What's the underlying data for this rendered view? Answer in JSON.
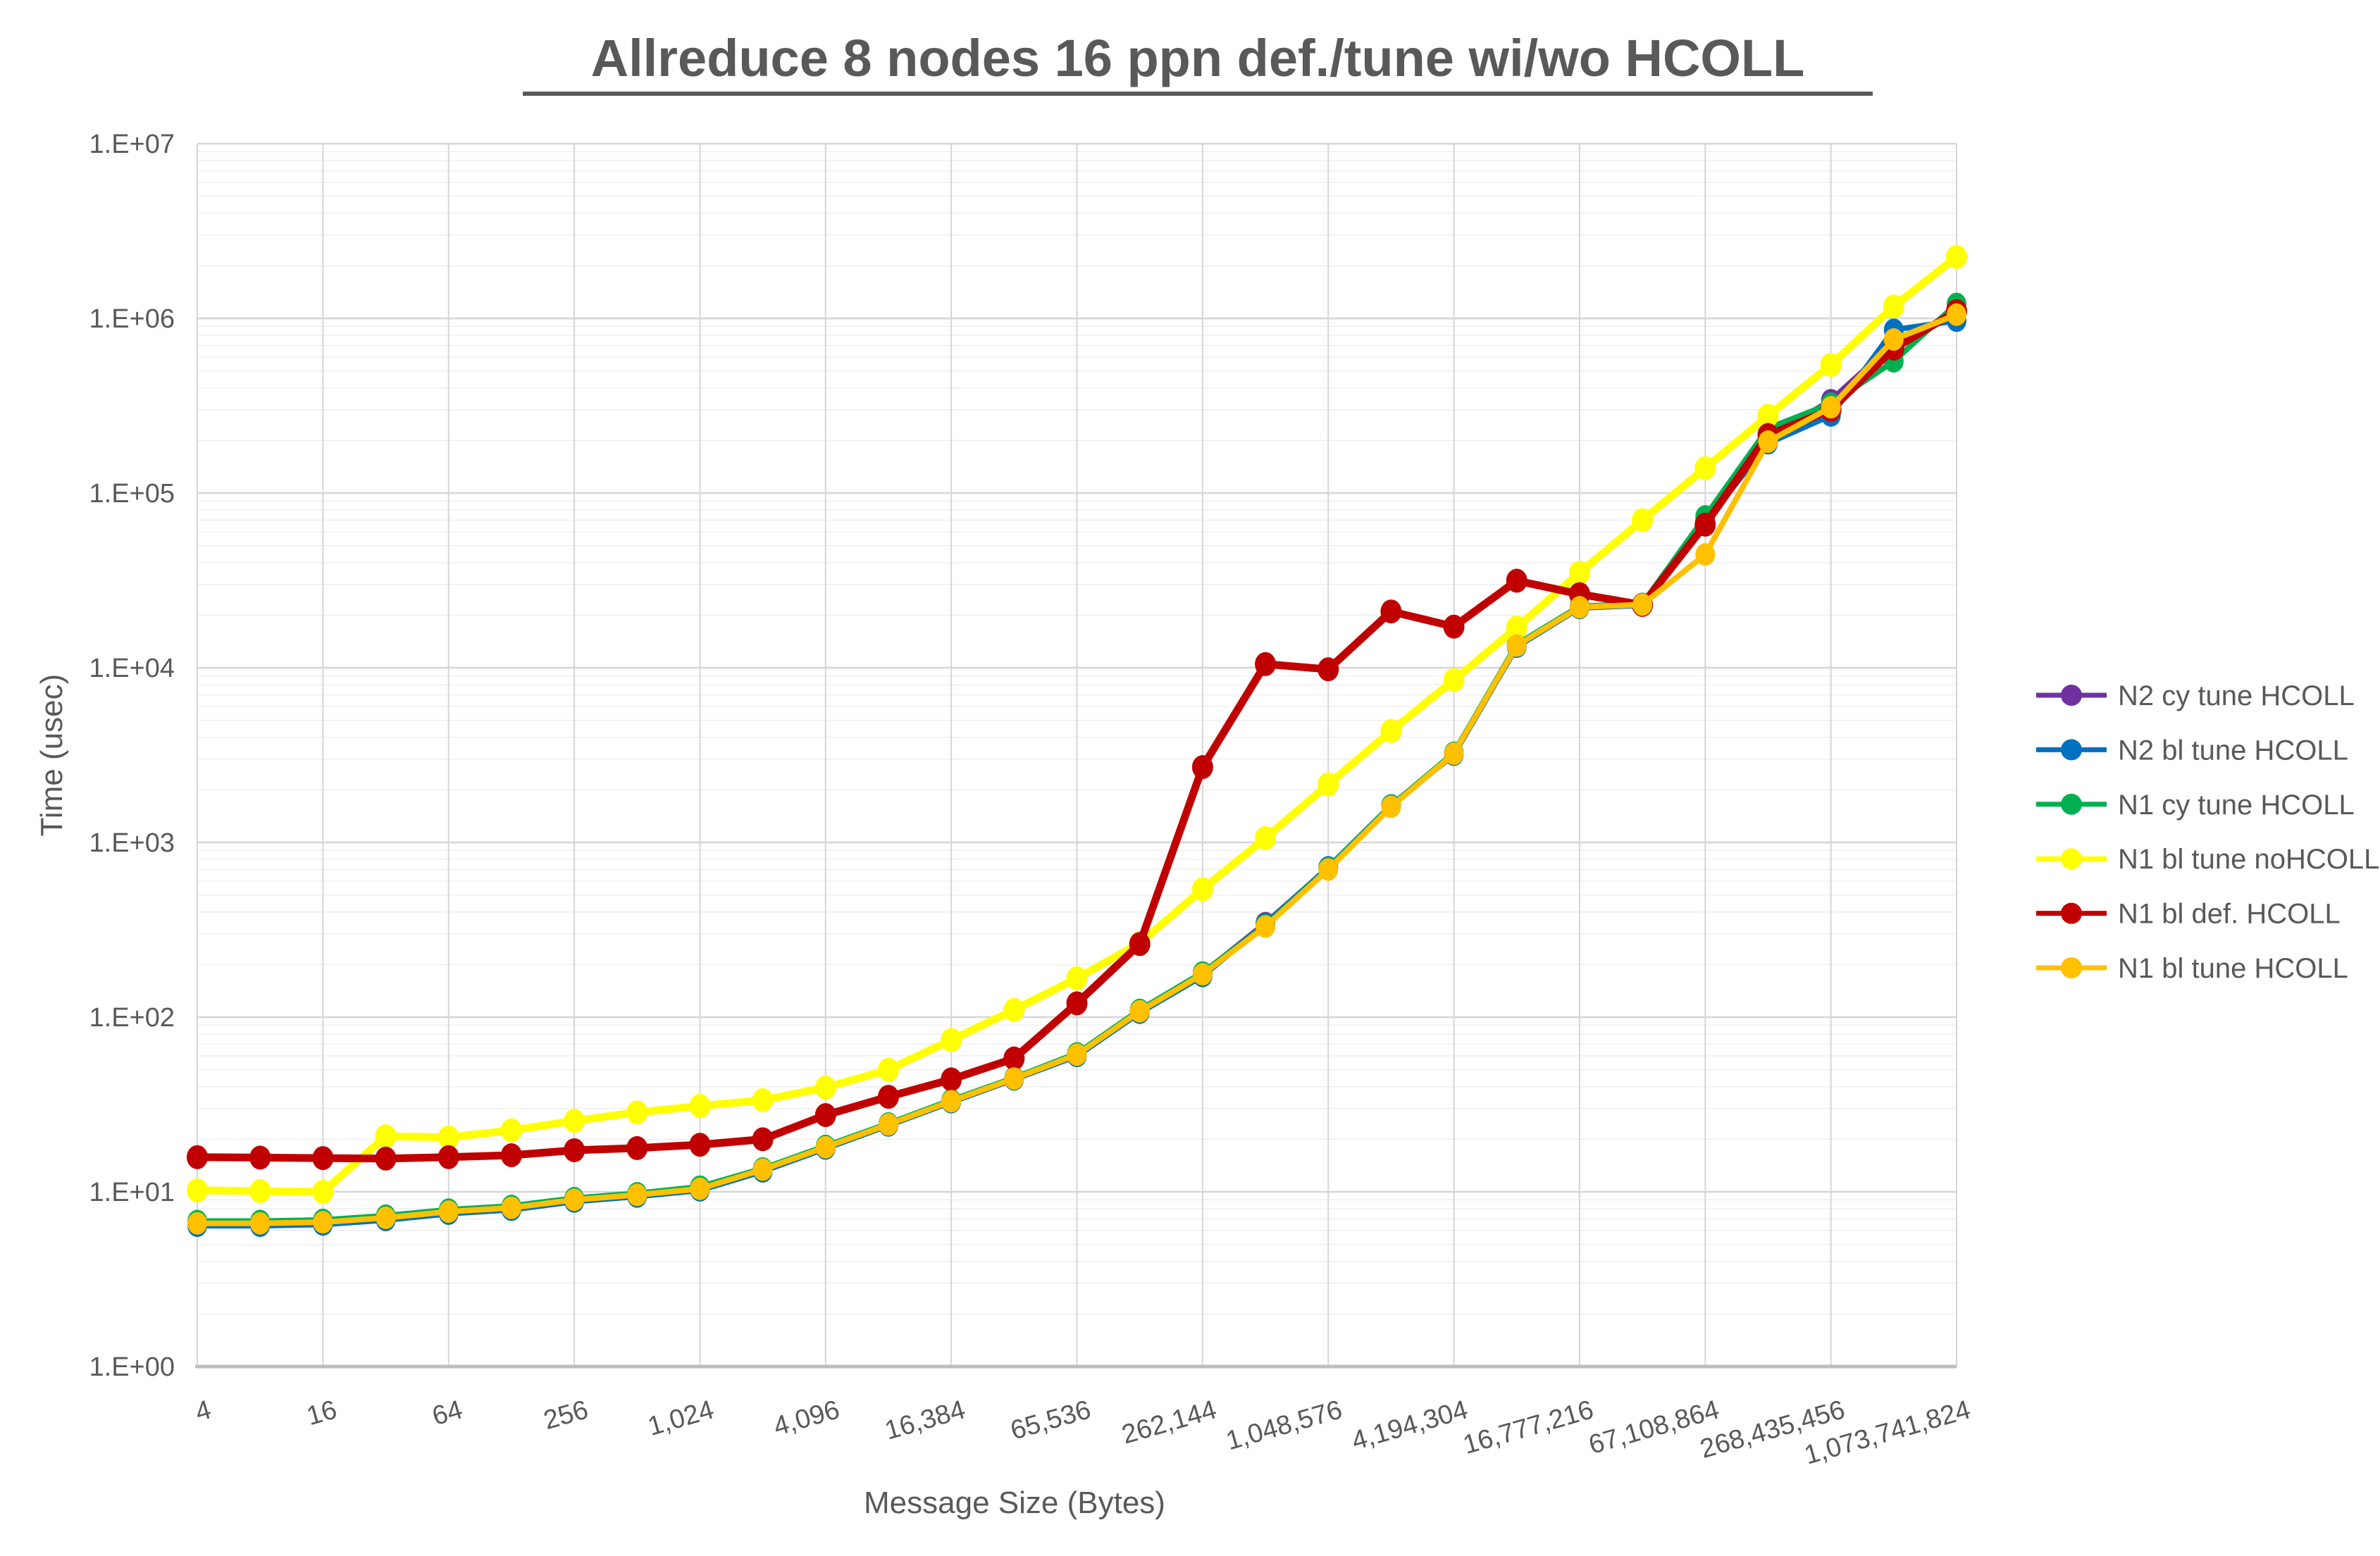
{
  "title": "Allreduce 8 nodes 16 ppn def./tune wi/wo HCOLL",
  "chart_data": {
    "type": "line",
    "x_scale": "log2",
    "y_scale": "log10",
    "title": "Allreduce 8 nodes 16 ppn def./tune wi/wo HCOLL",
    "xlabel": "Message Size (Bytes)",
    "ylabel": "Time (usec)",
    "ylim": [
      1,
      10000000
    ],
    "y_tick_labels": [
      "1.E+00",
      "1.E+01",
      "1.E+02",
      "1.E+03",
      "1.E+04",
      "1.E+05",
      "1.E+06",
      "1.E+07"
    ],
    "x": [
      4,
      8,
      16,
      32,
      64,
      128,
      256,
      512,
      1024,
      2048,
      4096,
      8192,
      16384,
      32768,
      65536,
      131072,
      262144,
      524288,
      1048576,
      2097152,
      4194304,
      8388608,
      16777216,
      33554432,
      67108864,
      134217728,
      268435456,
      536870912,
      1073741824
    ],
    "x_tick_values": [
      4,
      16,
      64,
      256,
      1024,
      4096,
      16384,
      65536,
      262144,
      1048576,
      4194304,
      16777216,
      67108864,
      268435456,
      1073741824
    ],
    "x_tick_labels": [
      "4",
      "16",
      "64",
      "256",
      "1,024",
      "4,096",
      "16,384",
      "65,536",
      "262,144",
      "1,048,576",
      "4,194,304",
      "16,777,216",
      "67,108,864",
      "268,435,456",
      "1,073,741,824"
    ],
    "grid": true,
    "legend_position": "right",
    "series": [
      {
        "name": "N2 cy tune HCOLL",
        "color": "#7030A0",
        "values": [
          6.7,
          6.7,
          6.8,
          7.2,
          7.8,
          8.2,
          9.1,
          9.7,
          10.5,
          13.5,
          18.1,
          24.4,
          33.2,
          44.7,
          61.5,
          109,
          178,
          345,
          715,
          1625,
          3240,
          13500,
          22300,
          23100,
          70000,
          205000,
          340000,
          720000,
          1080000
        ]
      },
      {
        "name": "N2 bl tune HCOLL",
        "color": "#0070C0",
        "values": [
          6.4,
          6.4,
          6.5,
          6.9,
          7.5,
          7.9,
          8.8,
          9.4,
          10.2,
          13.1,
          17.7,
          24.0,
          32.6,
          44.0,
          60,
          106,
          172,
          340,
          720,
          1630,
          3180,
          13200,
          22000,
          22800,
          68000,
          193000,
          278000,
          860000,
          970000
        ]
      },
      {
        "name": "N1 cy tune HCOLL",
        "color": "#00B050",
        "values": [
          6.8,
          6.8,
          6.9,
          7.3,
          7.9,
          8.3,
          9.2,
          9.8,
          10.7,
          13.6,
          18.3,
          24.6,
          33.5,
          45.0,
          62,
          110,
          180,
          335,
          710,
          1620,
          3260,
          13600,
          22500,
          23200,
          73500,
          235000,
          325000,
          568000,
          1210000
        ]
      },
      {
        "name": "N1 bl tune noHCOLL",
        "color": "#FFFF00",
        "values": [
          10.2,
          10.1,
          10.0,
          20.8,
          20.5,
          22.5,
          25.5,
          28.5,
          31,
          33.5,
          39.5,
          50,
          74,
          110,
          167,
          265,
          540,
          1060,
          2150,
          4350,
          8500,
          17000,
          35000,
          70000,
          139000,
          277000,
          542000,
          1170000,
          2250000
        ]
      },
      {
        "name": "N1 bl def. HCOLL",
        "color": "#C00000",
        "values": [
          15.8,
          15.7,
          15.6,
          15.5,
          15.8,
          16.2,
          17.3,
          17.8,
          18.6,
          20,
          27.5,
          35,
          44,
          58,
          120,
          262,
          2700,
          10500,
          9800,
          21000,
          17200,
          31500,
          26400,
          22900,
          66000,
          215000,
          300000,
          672000,
          1100000
        ]
      },
      {
        "name": "N1 bl tune HCOLL",
        "color": "#FFC000",
        "values": [
          6.6,
          6.6,
          6.7,
          7.1,
          7.7,
          8.1,
          9.0,
          9.6,
          10.4,
          13.4,
          18.0,
          24.3,
          33.0,
          44.5,
          61,
          108,
          176,
          330,
          700,
          1600,
          3220,
          13400,
          22200,
          23000,
          44500,
          197000,
          310000,
          757000,
          1050000
        ]
      }
    ]
  },
  "style_colors": {
    "text_gray": "#595959",
    "major_grid": "#D6D6D6",
    "minor_grid": "#EFEFEF",
    "axis_line": "#BFBFBF"
  }
}
